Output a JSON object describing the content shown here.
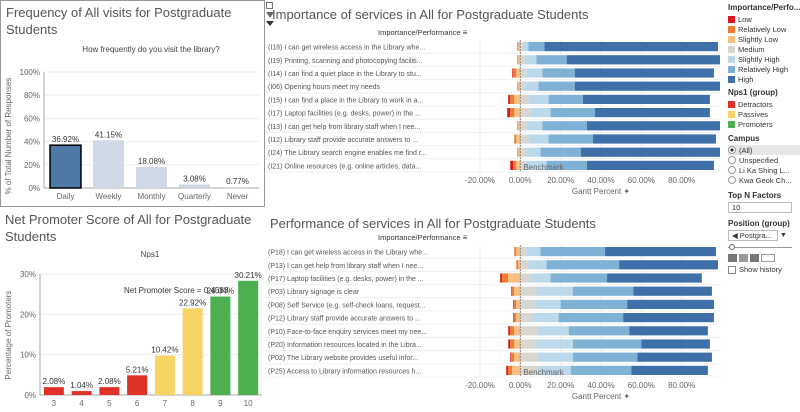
{
  "panels": {
    "freq": {
      "title": "Frequency of All visits for Postgraduate Students",
      "subtitle": "How frequently do you visit the library?",
      "ylabel": "% of Total Number of Responses"
    },
    "importance": {
      "title": "Importance of services in All for Postgraduate Students",
      "header": "Importance/Performance",
      "xlabel": "Gantt Percent",
      "benchmark": "Benchmark"
    },
    "nps": {
      "title": "Net Promoter Score of All for Postgraduate Students",
      "subtitle": "Nps1",
      "ylabel": "Percentage of Promoters",
      "annotation": "Net Promoter Score = 0.4583"
    },
    "performance": {
      "title": "Performance of services in All for Postgraduate Students",
      "header": "Importance/Performance",
      "xlabel": "Gantt Percent",
      "benchmark": "Benchmark"
    }
  },
  "sidebar": {
    "legend1_title": "Importance/Perfo...",
    "legend1": [
      {
        "label": "Low",
        "color": "#d7191c"
      },
      {
        "label": "Relatively Low",
        "color": "#f07c2e"
      },
      {
        "label": "Slightly Low",
        "color": "#fbbf82"
      },
      {
        "label": "Medium",
        "color": "#d9d6cf"
      },
      {
        "label": "Slightly High",
        "color": "#bcd9ec"
      },
      {
        "label": "Relatively High",
        "color": "#7fb0d6"
      },
      {
        "label": "High",
        "color": "#3f6fa8"
      }
    ],
    "legend2_title": "Nps1 (group)",
    "legend2": [
      {
        "label": "Detractors",
        "color": "#e0302a"
      },
      {
        "label": "Passives",
        "color": "#f7d463"
      },
      {
        "label": "Promoters",
        "color": "#4caf50"
      }
    ],
    "campus_title": "Campus",
    "campus": [
      "(All)",
      "Unspecified",
      "Li Ka Shing L...",
      "Kwa Geok Ch..."
    ],
    "topn_title": "Top N Factors",
    "topn_value": "10",
    "position_title": "Position (group)",
    "position_value": "Postgra...",
    "show_history": "Show history"
  },
  "chart_data": [
    {
      "type": "bar",
      "title": "Frequency of All visits for Postgraduate Students",
      "categories": [
        "Daily",
        "Weekly",
        "Monthly",
        "Quarterly",
        "Never"
      ],
      "values": [
        36.92,
        41.15,
        18.08,
        3.08,
        0.77
      ],
      "labels": [
        "36.92%",
        "41.15%",
        "18.08%",
        "3.08%",
        "0.77%"
      ],
      "ylim": [
        0,
        100
      ],
      "yticks": [
        "0%",
        "20%",
        "40%",
        "60%",
        "80%",
        "100%"
      ],
      "highlight": "Daily"
    },
    {
      "type": "bar",
      "title": "Importance of services in All for Postgraduate Students",
      "rows": [
        "(I18) I can get wireless access in the Library whe...",
        "(I19) Printing, scanning and photocopying faciliti...",
        "(I14) I can find a quiet place in the Library to stu...",
        "(I06) Opening hours meet my needs",
        "(I15) I can find a place in the Library to work in a...",
        "(I17) Laptop facilities (e.g. desks, power) in the ...",
        "(I13) I can get help from library staff when I nee...",
        "(I12) Library staff provide accurate answers to ...",
        "(I24) The Library search engine enables me find r...",
        "(I21) Online resources (e.g. online articles, data..."
      ],
      "xticks": [
        "-20.00%",
        "0.00%",
        "20.00%",
        "40.00%",
        "60.00%",
        "80.00%"
      ],
      "xlim": [
        -20,
        100
      ],
      "segments": [
        [
          0,
          0.5,
          1,
          1,
          3,
          8,
          86
        ],
        [
          0,
          0.5,
          1,
          2,
          6,
          15,
          76
        ],
        [
          0.5,
          1.5,
          2,
          3,
          8,
          16,
          69
        ],
        [
          0,
          0.5,
          1,
          2,
          7,
          18,
          72
        ],
        [
          1,
          2,
          3,
          4,
          10,
          17,
          63
        ],
        [
          1.5,
          2,
          3,
          5,
          10,
          22,
          57
        ],
        [
          0,
          0.5,
          1,
          3,
          8,
          22,
          66
        ],
        [
          0,
          1,
          2,
          4,
          10,
          22,
          61
        ],
        [
          0,
          0.5,
          1,
          3,
          7,
          20,
          69
        ],
        [
          1.5,
          1.5,
          2,
          3,
          10,
          20,
          63
        ]
      ]
    },
    {
      "type": "bar",
      "title": "Net Promoter Score of All for Postgraduate Students",
      "categories": [
        "3",
        "4",
        "5",
        "6",
        "7",
        "8",
        "9",
        "10"
      ],
      "values": [
        2.08,
        1.04,
        2.08,
        5.21,
        10.42,
        22.92,
        26.04,
        30.21
      ],
      "labels": [
        "2.08%",
        "1.04%",
        "2.08%",
        "5.21%",
        "10.42%",
        "22.92%",
        "26.04%",
        "30.21%"
      ],
      "groups": [
        "Detractors",
        "Detractors",
        "Detractors",
        "Detractors",
        "Passives",
        "Passives",
        "Promoters",
        "Promoters"
      ],
      "ylim": [
        0,
        32
      ],
      "yticks": [
        "0%",
        "10%",
        "20%",
        "30%"
      ]
    },
    {
      "type": "bar",
      "title": "Performance of services in All for Postgraduate Students",
      "rows": [
        "(P18) I can get wireless access in the Library whe...",
        "(P13) I can get help from library staff when I nee...",
        "(P17) Laptop facilities (e.g. desks, power) in the ...",
        "(P03) Library signage is clear",
        "(P08) Self Service (e.g. self-check loans, request...",
        "(P12) Library staff provide accurate answers to ...",
        "(P10) Face-to-face enquiry services meet my nee...",
        "(P20) Information resources located in the Libra...",
        "(P02) The Library website provides useful infor...",
        "(P25) Access to Library information resources h..."
      ],
      "xticks": [
        "-20.00%",
        "0.00%",
        "20.00%",
        "40.00%",
        "60.00%",
        "80.00%"
      ],
      "xlim": [
        -20,
        100
      ],
      "segments": [
        [
          0,
          1,
          2,
          3,
          7,
          32,
          55
        ],
        [
          0,
          1,
          1,
          4,
          9,
          36,
          49
        ],
        [
          1,
          3,
          6,
          5,
          10,
          28,
          47
        ],
        [
          0.5,
          1,
          3,
          8,
          18,
          30,
          39
        ],
        [
          0.5,
          1,
          2,
          7,
          13,
          33,
          43
        ],
        [
          0.5,
          1,
          2,
          6,
          13,
          32,
          45
        ],
        [
          1,
          2,
          3,
          9,
          15,
          30,
          39
        ],
        [
          1,
          2,
          3,
          8,
          18,
          34,
          34
        ],
        [
          0.5,
          1.5,
          3,
          9,
          17,
          32,
          37
        ],
        [
          1,
          2,
          4,
          9,
          16,
          30,
          38
        ]
      ]
    }
  ]
}
